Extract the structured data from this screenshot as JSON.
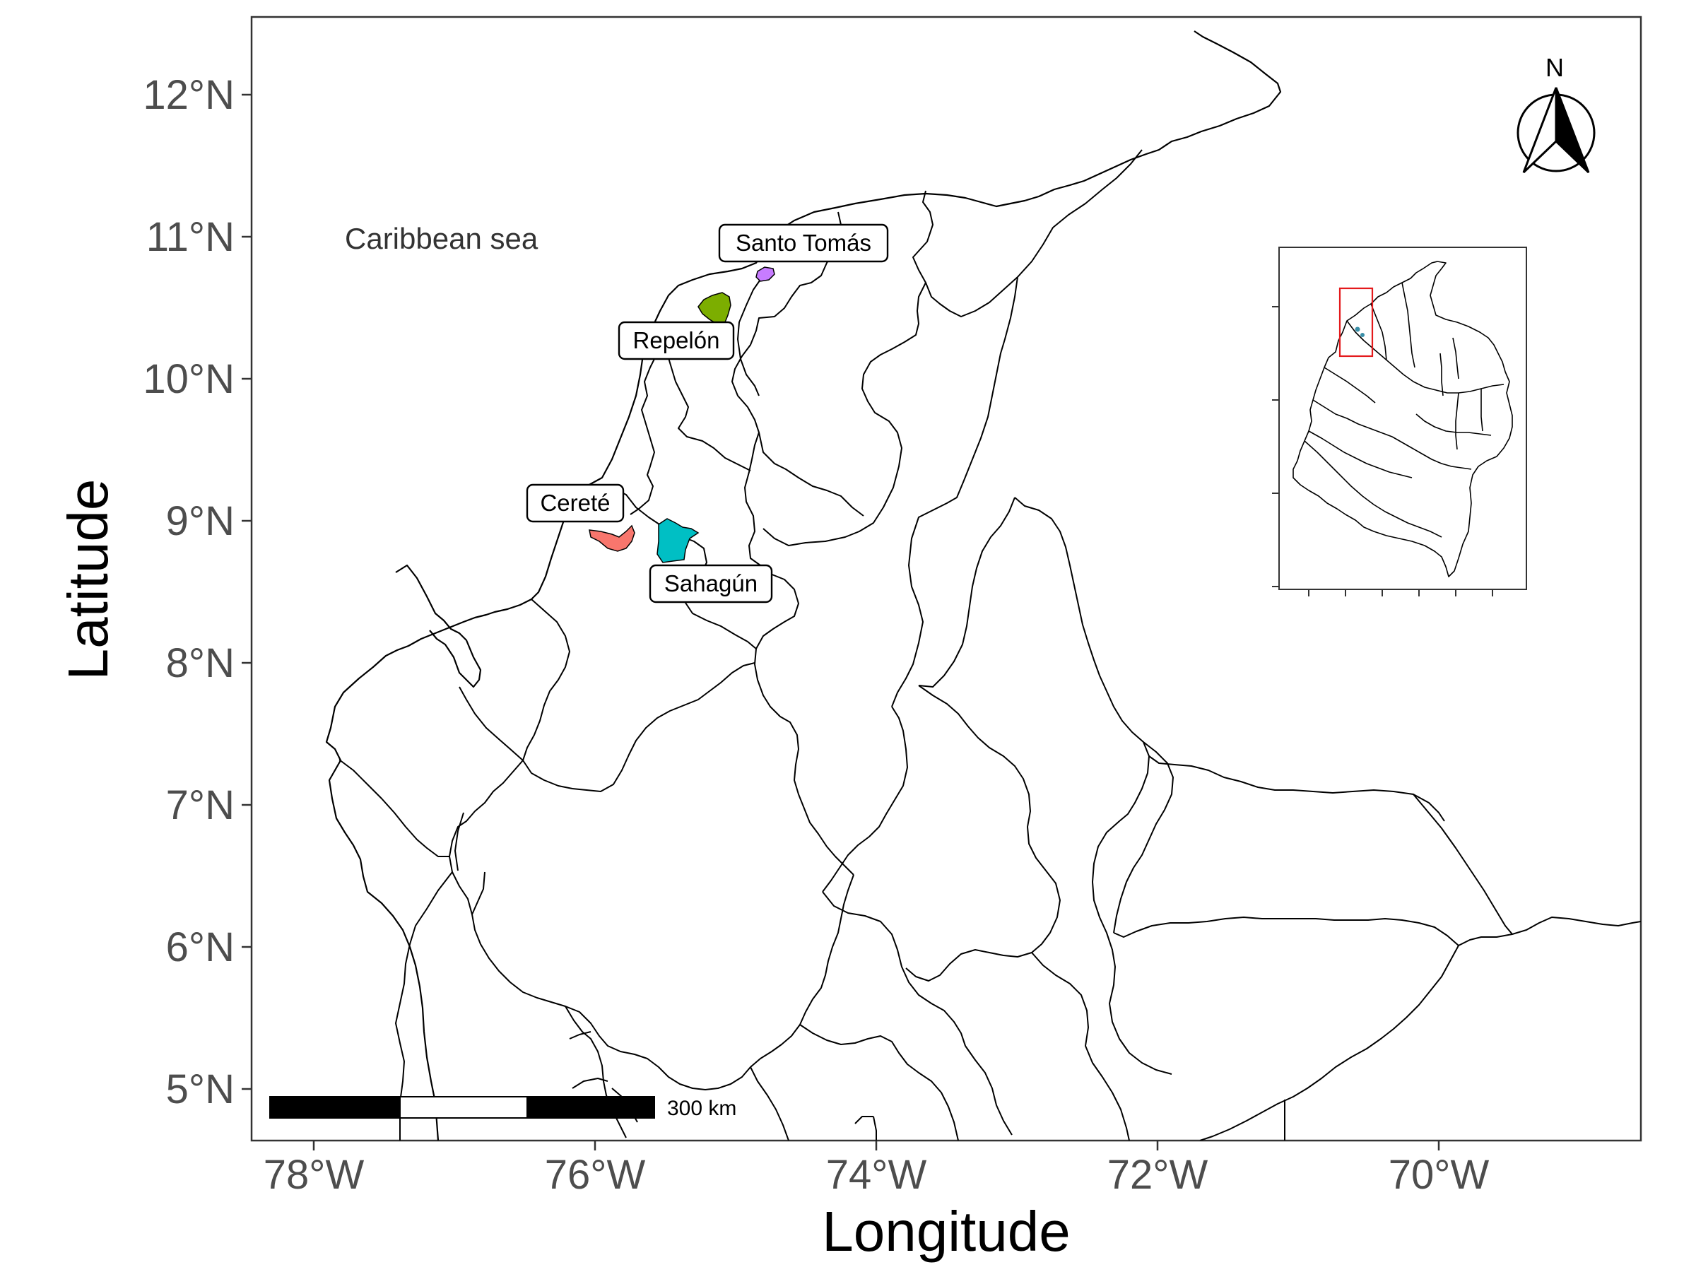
{
  "map": {
    "xlabel": "Longitude",
    "ylabel": "Latitude",
    "x_ticks": [
      "78°W",
      "76°W",
      "74°W",
      "72°W",
      "70°W"
    ],
    "y_ticks": [
      "12°N",
      "11°N",
      "10°N",
      "9°N",
      "8°N",
      "7°N",
      "6°N",
      "5°N"
    ],
    "sea_label": "Caribbean sea",
    "north_label": "N",
    "scale_label": "300 km",
    "municipalities": [
      {
        "name": "Santo Tomás",
        "color": "#c77cff"
      },
      {
        "name": "Repelón",
        "color": "#7cae00"
      },
      {
        "name": "Cereté",
        "color": "#f8766d"
      },
      {
        "name": "Sahagún",
        "color": "#00bfc4"
      }
    ],
    "inset": {
      "highlight_color": "#e41a1c"
    }
  }
}
